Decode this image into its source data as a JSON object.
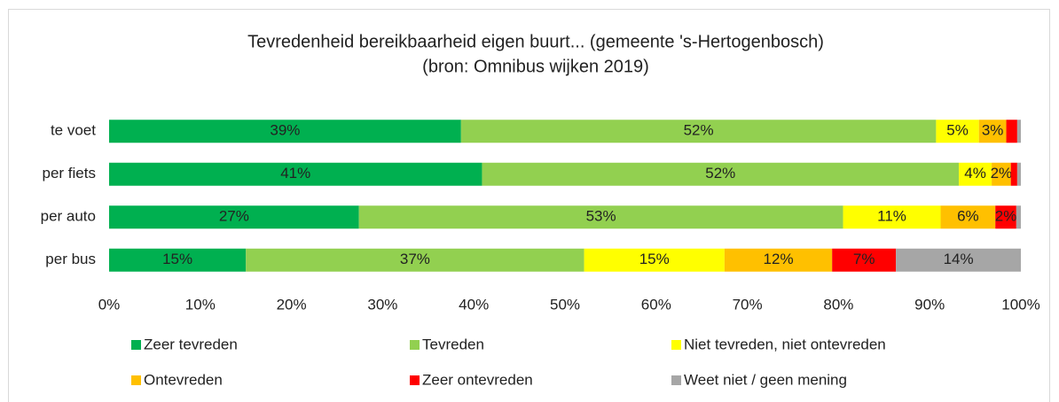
{
  "chart_data": {
    "type": "stacked_barh",
    "title": "Tevredenheid bereikbaarheid eigen buurt... (gemeente 's-Hertogenbosch)",
    "subtitle": "(bron: Omnibus wijken 2019)",
    "categories": [
      "te voet",
      "per fiets",
      "per auto",
      "per bus"
    ],
    "series": [
      {
        "name": "Zeer tevreden",
        "color": "#00b050",
        "values": [
          38.6,
          40.9,
          27.4,
          15.0
        ],
        "value_labels": [
          "39%",
          "41%",
          "27%",
          "15%"
        ]
      },
      {
        "name": "Tevreden",
        "color": "#92d050",
        "values": [
          52.1,
          52.3,
          53.1,
          37.1
        ],
        "value_labels": [
          "52%",
          "52%",
          "53%",
          "37%"
        ]
      },
      {
        "name": "Niet tevreden, niet ontevreden",
        "color": "#ffff00",
        "values": [
          4.7,
          3.6,
          10.7,
          15.4
        ],
        "value_labels": [
          "5%",
          "4%",
          "11%",
          "15%"
        ]
      },
      {
        "name": "Ontevreden",
        "color": "#ffc000",
        "values": [
          3.0,
          2.1,
          6.0,
          11.8
        ],
        "value_labels": [
          "3%",
          "2%",
          "6%",
          "12%"
        ]
      },
      {
        "name": "Zeer ontevreden",
        "color": "#ff0000",
        "values": [
          1.2,
          0.7,
          2.3,
          7.0
        ],
        "value_labels": [
          null,
          null,
          "2%",
          "7%"
        ]
      },
      {
        "name": "Weet niet / geen mening",
        "color": "#a6a6a6",
        "values": [
          0.4,
          0.4,
          0.5,
          13.7
        ],
        "value_labels": [
          null,
          null,
          null,
          "14%"
        ]
      }
    ],
    "xlim": [
      0,
      100
    ],
    "xticks": [
      {
        "value": 0,
        "label": "0%"
      },
      {
        "value": 10,
        "label": "10%"
      },
      {
        "value": 20,
        "label": "20%"
      },
      {
        "value": 30,
        "label": "30%"
      },
      {
        "value": 40,
        "label": "40%"
      },
      {
        "value": 50,
        "label": "50%"
      },
      {
        "value": 60,
        "label": "60%"
      },
      {
        "value": 70,
        "label": "70%"
      },
      {
        "value": 80,
        "label": "80%"
      },
      {
        "value": 90,
        "label": "90%"
      },
      {
        "value": 100,
        "label": "100%"
      }
    ],
    "grid": false,
    "legend": "bottom"
  }
}
